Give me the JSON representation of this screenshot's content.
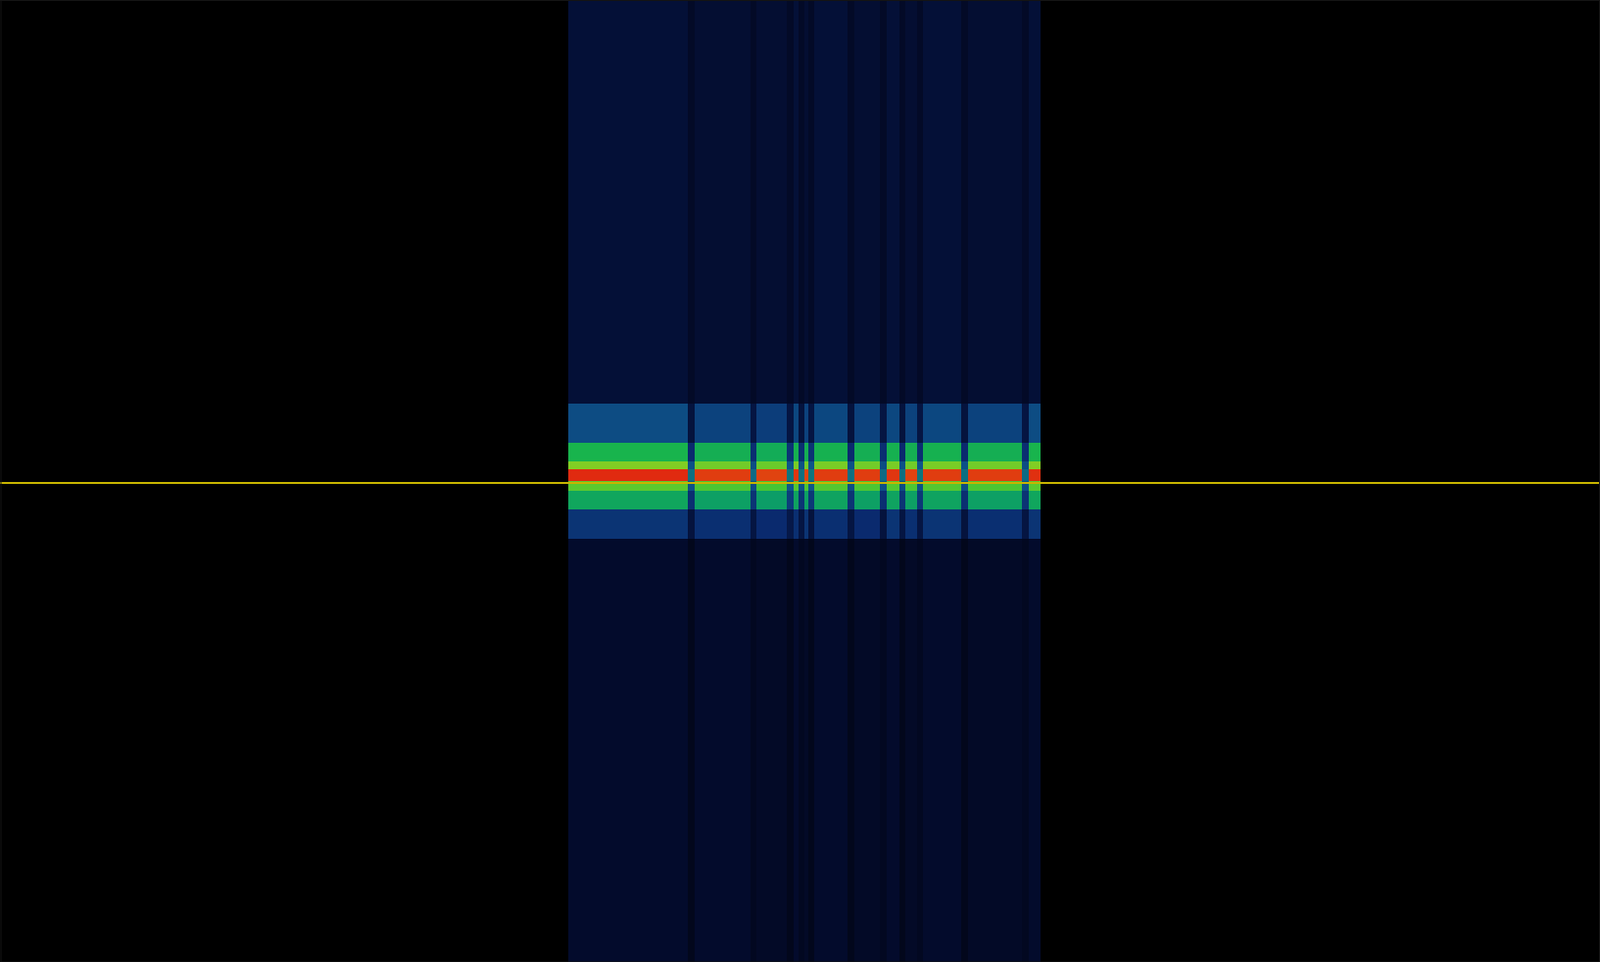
{
  "chart_data": {
    "type": "heatmap",
    "xlim": [
      0,
      100
    ],
    "ylim": [
      0,
      100
    ],
    "zlim": [
      0,
      100
    ],
    "tick_labels": false,
    "x_edges": [
      35.5,
      43.0,
      43.4,
      46.9,
      47.3,
      49.2,
      49.6,
      49.9,
      50.3,
      50.5,
      50.9,
      53.0,
      53.4,
      55.0,
      55.4,
      56.2,
      56.6,
      57.3,
      57.7,
      60.1,
      60.5,
      63.9,
      64.3,
      65.05
    ],
    "y_edges": [
      0,
      44,
      47,
      49,
      50,
      51.2,
      52,
      54,
      58,
      100
    ],
    "values": [
      [
        8,
        5,
        8,
        6,
        7,
        5,
        8,
        6,
        7,
        5,
        8,
        5,
        7,
        6,
        8,
        5,
        7,
        6,
        8,
        5,
        7,
        6,
        8
      ],
      [
        22,
        11,
        21,
        12,
        20,
        13,
        21,
        12,
        22,
        11,
        21,
        12,
        20,
        11,
        22,
        12,
        21,
        12,
        22,
        11,
        21,
        12,
        22
      ],
      [
        46,
        21,
        44,
        22,
        43,
        24,
        45,
        22,
        44,
        23,
        45,
        22,
        44,
        21,
        45,
        22,
        44,
        23,
        45,
        21,
        44,
        22,
        46
      ],
      [
        63,
        28,
        61,
        27,
        60,
        29,
        62,
        28,
        61,
        29,
        62,
        27,
        61,
        28,
        62,
        27,
        61,
        28,
        62,
        27,
        61,
        28,
        63
      ],
      [
        96,
        34,
        93,
        33,
        92,
        35,
        94,
        34,
        92,
        35,
        93,
        34,
        93,
        33,
        94,
        34,
        92,
        35,
        93,
        34,
        93,
        33,
        95
      ],
      [
        68,
        28,
        66,
        27,
        65,
        29,
        67,
        28,
        66,
        29,
        67,
        28,
        66,
        27,
        67,
        28,
        66,
        29,
        67,
        28,
        66,
        27,
        68
      ],
      [
        51,
        20,
        49,
        21,
        48,
        22,
        50,
        21,
        49,
        22,
        50,
        20,
        49,
        21,
        50,
        20,
        49,
        21,
        50,
        20,
        49,
        21,
        51
      ],
      [
        27,
        11,
        25,
        12,
        24,
        12,
        26,
        11,
        25,
        12,
        26,
        11,
        25,
        12,
        26,
        11,
        25,
        12,
        26,
        11,
        25,
        12,
        27
      ],
      [
        10,
        7,
        9,
        7,
        9,
        7,
        10,
        7,
        9,
        7,
        10,
        7,
        9,
        7,
        10,
        7,
        9,
        7,
        10,
        7,
        9,
        7,
        10
      ]
    ],
    "reference_lines": [
      {
        "value": 49.8,
        "color": "#c8b400"
      }
    ]
  }
}
